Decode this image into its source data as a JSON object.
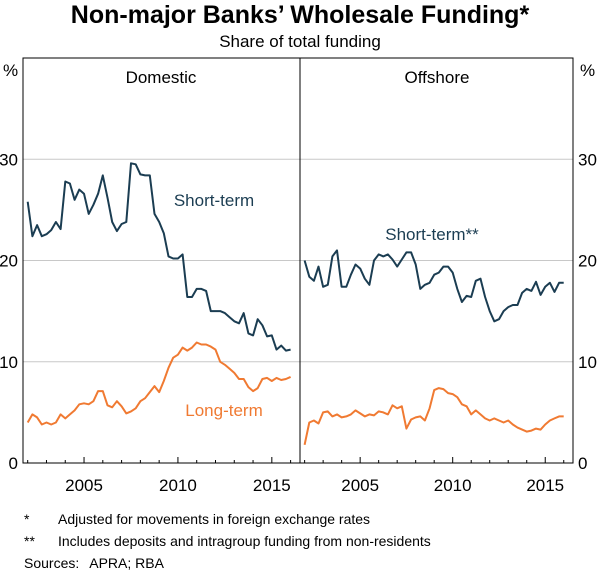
{
  "chart_title": "Non-major Banks’ Wholesale Funding*",
  "chart_subtitle": "Share of total funding",
  "colors": {
    "short_term": "#1b3d52",
    "long_term": "#f07a32"
  },
  "chart_data": {
    "type": "line",
    "y_unit": "%",
    "ylim": [
      0,
      40
    ],
    "y_ticks": [
      0,
      10,
      20,
      30
    ],
    "x_ticks": [
      2005,
      2010,
      2015
    ],
    "panels": [
      {
        "panel_title": "Domestic",
        "xlim": [
          2001.75,
          2016.5
        ],
        "series": [
          {
            "name": "Short-term",
            "label": "Short-term",
            "color_key": "short_term",
            "points": [
              [
                2002.0,
                25.8
              ],
              [
                2002.25,
                22.4
              ],
              [
                2002.5,
                23.5
              ],
              [
                2002.75,
                22.4
              ],
              [
                2003.0,
                22.6
              ],
              [
                2003.25,
                23.0
              ],
              [
                2003.5,
                23.8
              ],
              [
                2003.75,
                23.1
              ],
              [
                2004.0,
                27.8
              ],
              [
                2004.25,
                27.6
              ],
              [
                2004.5,
                26.0
              ],
              [
                2004.75,
                27.0
              ],
              [
                2005.0,
                26.6
              ],
              [
                2005.25,
                24.6
              ],
              [
                2005.5,
                25.5
              ],
              [
                2005.75,
                26.6
              ],
              [
                2006.0,
                28.4
              ],
              [
                2006.25,
                26.2
              ],
              [
                2006.5,
                23.8
              ],
              [
                2006.75,
                22.9
              ],
              [
                2007.0,
                23.6
              ],
              [
                2007.25,
                23.8
              ],
              [
                2007.5,
                29.6
              ],
              [
                2007.75,
                29.5
              ],
              [
                2008.0,
                28.5
              ],
              [
                2008.25,
                28.4
              ],
              [
                2008.5,
                28.4
              ],
              [
                2008.75,
                24.6
              ],
              [
                2009.0,
                23.8
              ],
              [
                2009.25,
                22.7
              ],
              [
                2009.5,
                20.4
              ],
              [
                2009.75,
                20.2
              ],
              [
                2010.0,
                20.2
              ],
              [
                2010.25,
                20.6
              ],
              [
                2010.5,
                16.4
              ],
              [
                2010.75,
                16.4
              ],
              [
                2011.0,
                17.2
              ],
              [
                2011.25,
                17.2
              ],
              [
                2011.5,
                17.0
              ],
              [
                2011.75,
                15.0
              ],
              [
                2012.0,
                15.0
              ],
              [
                2012.25,
                15.0
              ],
              [
                2012.5,
                14.8
              ],
              [
                2012.75,
                14.4
              ],
              [
                2013.0,
                14.0
              ],
              [
                2013.25,
                13.8
              ],
              [
                2013.5,
                14.8
              ],
              [
                2013.75,
                12.8
              ],
              [
                2014.0,
                12.6
              ],
              [
                2014.25,
                14.2
              ],
              [
                2014.5,
                13.6
              ],
              [
                2014.75,
                12.5
              ],
              [
                2015.0,
                12.6
              ],
              [
                2015.25,
                11.2
              ],
              [
                2015.5,
                11.6
              ],
              [
                2015.75,
                11.1
              ],
              [
                2016.0,
                11.2
              ]
            ]
          },
          {
            "name": "Long-term",
            "label": "Long-term",
            "color_key": "long_term",
            "points": [
              [
                2002.0,
                4.0
              ],
              [
                2002.25,
                4.8
              ],
              [
                2002.5,
                4.5
              ],
              [
                2002.75,
                3.8
              ],
              [
                2003.0,
                4.0
              ],
              [
                2003.25,
                3.8
              ],
              [
                2003.5,
                4.0
              ],
              [
                2003.75,
                4.8
              ],
              [
                2004.0,
                4.4
              ],
              [
                2004.25,
                4.8
              ],
              [
                2004.5,
                5.2
              ],
              [
                2004.75,
                5.8
              ],
              [
                2005.0,
                5.9
              ],
              [
                2005.25,
                5.8
              ],
              [
                2005.5,
                6.1
              ],
              [
                2005.75,
                7.1
              ],
              [
                2006.0,
                7.1
              ],
              [
                2006.25,
                5.7
              ],
              [
                2006.5,
                5.5
              ],
              [
                2006.75,
                6.1
              ],
              [
                2007.0,
                5.6
              ],
              [
                2007.25,
                4.9
              ],
              [
                2007.5,
                5.1
              ],
              [
                2007.75,
                5.4
              ],
              [
                2008.0,
                6.1
              ],
              [
                2008.25,
                6.4
              ],
              [
                2008.5,
                7.0
              ],
              [
                2008.75,
                7.6
              ],
              [
                2009.0,
                7.0
              ],
              [
                2009.25,
                8.1
              ],
              [
                2009.5,
                9.4
              ],
              [
                2009.75,
                10.4
              ],
              [
                2010.0,
                10.7
              ],
              [
                2010.25,
                11.4
              ],
              [
                2010.5,
                11.1
              ],
              [
                2010.75,
                11.4
              ],
              [
                2011.0,
                11.9
              ],
              [
                2011.25,
                11.7
              ],
              [
                2011.5,
                11.7
              ],
              [
                2011.75,
                11.5
              ],
              [
                2012.0,
                11.2
              ],
              [
                2012.25,
                10.0
              ],
              [
                2012.5,
                9.7
              ],
              [
                2012.75,
                9.3
              ],
              [
                2013.0,
                8.9
              ],
              [
                2013.25,
                8.3
              ],
              [
                2013.5,
                8.3
              ],
              [
                2013.75,
                7.5
              ],
              [
                2014.0,
                7.1
              ],
              [
                2014.25,
                7.4
              ],
              [
                2014.5,
                8.3
              ],
              [
                2014.75,
                8.4
              ],
              [
                2015.0,
                8.1
              ],
              [
                2015.25,
                8.4
              ],
              [
                2015.5,
                8.2
              ],
              [
                2015.75,
                8.3
              ],
              [
                2016.0,
                8.5
              ]
            ]
          }
        ]
      },
      {
        "panel_title": "Offshore",
        "xlim": [
          2001.75,
          2016.5
        ],
        "series": [
          {
            "name": "Short-term**",
            "label": "Short-term**",
            "color_key": "short_term",
            "points": [
              [
                2002.0,
                20.0
              ],
              [
                2002.25,
                18.4
              ],
              [
                2002.5,
                18.0
              ],
              [
                2002.75,
                19.4
              ],
              [
                2003.0,
                17.4
              ],
              [
                2003.25,
                17.6
              ],
              [
                2003.5,
                20.4
              ],
              [
                2003.75,
                21.0
              ],
              [
                2004.0,
                17.4
              ],
              [
                2004.25,
                17.4
              ],
              [
                2004.5,
                18.6
              ],
              [
                2004.75,
                19.6
              ],
              [
                2005.0,
                19.2
              ],
              [
                2005.25,
                18.2
              ],
              [
                2005.5,
                17.6
              ],
              [
                2005.75,
                20.0
              ],
              [
                2006.0,
                20.6
              ],
              [
                2006.25,
                20.4
              ],
              [
                2006.5,
                20.6
              ],
              [
                2006.75,
                20.1
              ],
              [
                2007.0,
                19.4
              ],
              [
                2007.25,
                20.1
              ],
              [
                2007.5,
                20.8
              ],
              [
                2007.75,
                20.8
              ],
              [
                2008.0,
                19.6
              ],
              [
                2008.25,
                17.2
              ],
              [
                2008.5,
                17.6
              ],
              [
                2008.75,
                17.8
              ],
              [
                2009.0,
                18.6
              ],
              [
                2009.25,
                18.8
              ],
              [
                2009.5,
                19.4
              ],
              [
                2009.75,
                19.4
              ],
              [
                2010.0,
                18.8
              ],
              [
                2010.25,
                17.2
              ],
              [
                2010.5,
                15.9
              ],
              [
                2010.75,
                16.5
              ],
              [
                2011.0,
                16.4
              ],
              [
                2011.25,
                18.0
              ],
              [
                2011.5,
                18.2
              ],
              [
                2011.75,
                16.4
              ],
              [
                2012.0,
                15.0
              ],
              [
                2012.25,
                14.0
              ],
              [
                2012.5,
                14.2
              ],
              [
                2012.75,
                15.0
              ],
              [
                2013.0,
                15.4
              ],
              [
                2013.25,
                15.6
              ],
              [
                2013.5,
                15.6
              ],
              [
                2013.75,
                16.8
              ],
              [
                2014.0,
                17.2
              ],
              [
                2014.25,
                17.0
              ],
              [
                2014.5,
                17.9
              ],
              [
                2014.75,
                16.6
              ],
              [
                2015.0,
                17.4
              ],
              [
                2015.25,
                17.8
              ],
              [
                2015.5,
                16.9
              ],
              [
                2015.75,
                17.8
              ],
              [
                2016.0,
                17.8
              ]
            ]
          },
          {
            "name": "Long-term",
            "label": "",
            "color_key": "long_term",
            "points": [
              [
                2002.0,
                1.8
              ],
              [
                2002.25,
                4.0
              ],
              [
                2002.5,
                4.2
              ],
              [
                2002.75,
                3.9
              ],
              [
                2003.0,
                5.0
              ],
              [
                2003.25,
                5.1
              ],
              [
                2003.5,
                4.6
              ],
              [
                2003.75,
                4.8
              ],
              [
                2004.0,
                4.5
              ],
              [
                2004.25,
                4.6
              ],
              [
                2004.5,
                4.8
              ],
              [
                2004.75,
                5.2
              ],
              [
                2005.0,
                4.9
              ],
              [
                2005.25,
                4.6
              ],
              [
                2005.5,
                4.8
              ],
              [
                2005.75,
                4.7
              ],
              [
                2006.0,
                5.1
              ],
              [
                2006.25,
                5.0
              ],
              [
                2006.5,
                4.8
              ],
              [
                2006.75,
                5.7
              ],
              [
                2007.0,
                5.4
              ],
              [
                2007.25,
                5.6
              ],
              [
                2007.5,
                3.4
              ],
              [
                2007.75,
                4.3
              ],
              [
                2008.0,
                4.5
              ],
              [
                2008.25,
                4.6
              ],
              [
                2008.5,
                4.2
              ],
              [
                2008.75,
                5.4
              ],
              [
                2009.0,
                7.2
              ],
              [
                2009.25,
                7.4
              ],
              [
                2009.5,
                7.3
              ],
              [
                2009.75,
                6.9
              ],
              [
                2010.0,
                6.8
              ],
              [
                2010.25,
                6.5
              ],
              [
                2010.5,
                5.8
              ],
              [
                2010.75,
                5.6
              ],
              [
                2011.0,
                4.8
              ],
              [
                2011.25,
                5.2
              ],
              [
                2011.5,
                4.8
              ],
              [
                2011.75,
                4.4
              ],
              [
                2012.0,
                4.2
              ],
              [
                2012.25,
                4.4
              ],
              [
                2012.5,
                4.2
              ],
              [
                2012.75,
                4.0
              ],
              [
                2013.0,
                4.2
              ],
              [
                2013.25,
                3.8
              ],
              [
                2013.5,
                3.5
              ],
              [
                2013.75,
                3.3
              ],
              [
                2014.0,
                3.1
              ],
              [
                2014.25,
                3.2
              ],
              [
                2014.5,
                3.4
              ],
              [
                2014.75,
                3.3
              ],
              [
                2015.0,
                3.8
              ],
              [
                2015.25,
                4.2
              ],
              [
                2015.5,
                4.4
              ],
              [
                2015.75,
                4.6
              ],
              [
                2016.0,
                4.6
              ]
            ]
          }
        ]
      }
    ]
  },
  "notes": [
    {
      "mark": "*",
      "text": "Adjusted for movements in foreign exchange rates"
    },
    {
      "mark": "**",
      "text": "Includes deposits and intragroup funding from non-residents"
    }
  ],
  "sources_label": "Sources:",
  "sources_text": "APRA; RBA"
}
